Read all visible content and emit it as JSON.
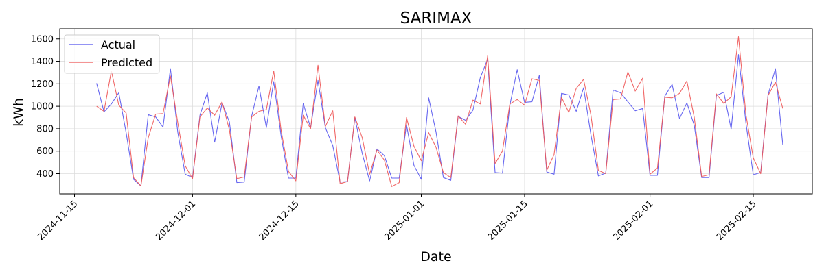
{
  "chart_data": {
    "type": "line",
    "title": "SARIMAX",
    "xlabel": "Date",
    "ylabel": "kWh",
    "x_range": [
      "2024-11-13",
      "2025-02-23"
    ],
    "ylim": [
      220,
      1690
    ],
    "grid": true,
    "legend": "upper-left",
    "x_ticks": [
      "2024-11-15",
      "2024-12-01",
      "2024-12-15",
      "2025-01-01",
      "2025-01-15",
      "2025-02-01",
      "2025-02-15"
    ],
    "y_ticks": [
      400,
      600,
      800,
      1000,
      1200,
      1400,
      1600
    ],
    "start_date": "2024-11-18",
    "series": [
      {
        "name": "Actual",
        "color": "#5555ee",
        "values": [
          1205,
          950,
          1020,
          1120,
          765,
          350,
          290,
          925,
          905,
          815,
          1335,
          770,
          395,
          365,
          920,
          1120,
          680,
          1030,
          860,
          320,
          325,
          910,
          1180,
          810,
          1220,
          735,
          360,
          360,
          1025,
          810,
          1230,
          810,
          650,
          325,
          330,
          900,
          580,
          335,
          620,
          560,
          360,
          360,
          835,
          475,
          350,
          1075,
          770,
          365,
          340,
          910,
          875,
          965,
          1255,
          1420,
          410,
          405,
          1010,
          1325,
          1035,
          1040,
          1275,
          415,
          395,
          1115,
          1100,
          955,
          1165,
          745,
          380,
          405,
          1145,
          1120,
          1040,
          960,
          980,
          385,
          385,
          1090,
          1195,
          890,
          1030,
          830,
          365,
          365,
          1095,
          1125,
          795,
          1460,
          850,
          390,
          410,
          1100,
          1335,
          655
        ]
      },
      {
        "name": "Predicted",
        "color": "#ee5555",
        "values": [
          1000,
          955,
          1315,
          1010,
          940,
          365,
          290,
          720,
          930,
          935,
          1270,
          855,
          470,
          355,
          905,
          985,
          920,
          1040,
          790,
          355,
          370,
          905,
          955,
          970,
          1315,
          785,
          420,
          335,
          920,
          800,
          1365,
          820,
          960,
          310,
          330,
          905,
          720,
          395,
          610,
          520,
          285,
          320,
          900,
          645,
          515,
          765,
          635,
          410,
          365,
          915,
          840,
          1055,
          1020,
          1450,
          490,
          600,
          1020,
          1060,
          1010,
          1245,
          1230,
          430,
          570,
          1080,
          945,
          1160,
          1240,
          920,
          430,
          400,
          1060,
          1065,
          1305,
          1135,
          1250,
          395,
          450,
          1080,
          1075,
          1115,
          1225,
          900,
          375,
          390,
          1110,
          1025,
          1085,
          1620,
          925,
          540,
          400,
          1095,
          1215,
          980
        ]
      }
    ]
  }
}
